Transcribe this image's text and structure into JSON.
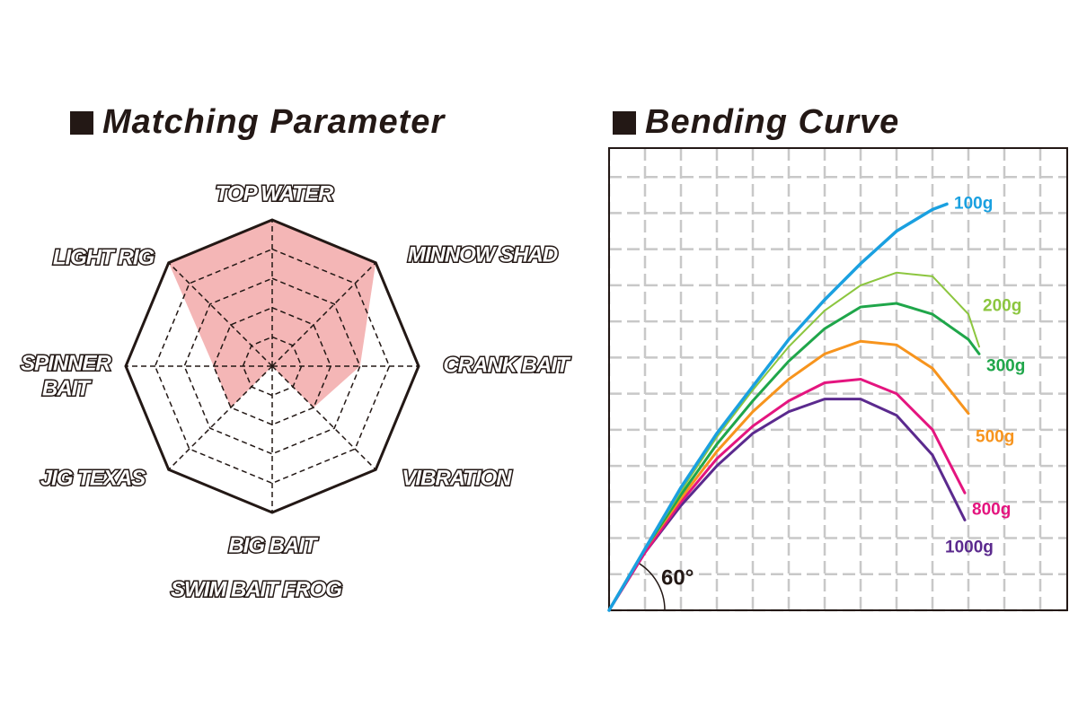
{
  "chart_data": [
    {
      "type": "radar",
      "title": "Matching Parameter",
      "categories": [
        [
          "TOP WATER"
        ],
        [
          "MINNOW SHAD"
        ],
        [
          "CRANK BAIT"
        ],
        [
          "VIBRATION"
        ],
        [
          "BIG BAIT",
          "SWIM BAIT FROG"
        ],
        [
          "JIG TEXAS"
        ],
        [
          "SPINNER",
          "BAIT"
        ],
        [
          "LIGHT RIG"
        ]
      ],
      "values": [
        5,
        5,
        3,
        2,
        0,
        2,
        2,
        5
      ],
      "color": "#f4b6b6",
      "rlim": [
        0,
        5
      ],
      "rticks": [
        1,
        2,
        3,
        4,
        5
      ]
    },
    {
      "type": "line",
      "title": "Bending Curve",
      "annotation": "60°",
      "xlim": [
        0,
        12.75
      ],
      "ylim": [
        0,
        12.8
      ],
      "xticks": [
        0,
        1,
        2,
        3,
        4,
        5,
        6,
        7,
        8,
        9,
        10,
        11,
        12
      ],
      "yticks": [
        0,
        1,
        2,
        3,
        4,
        5,
        6,
        7,
        8,
        9,
        10,
        11,
        12
      ],
      "grid": true,
      "series": [
        {
          "name": "100g",
          "color": "#1aa0e0",
          "x": [
            0,
            1,
            2,
            3,
            4,
            5,
            6,
            7,
            8,
            9,
            9.4
          ],
          "values": [
            0,
            1.7,
            3.4,
            4.9,
            6.2,
            7.5,
            8.6,
            9.6,
            10.5,
            11.1,
            11.25
          ]
        },
        {
          "name": "200g",
          "color": "#8cc63f",
          "x": [
            0,
            1,
            2,
            3,
            4,
            5,
            6,
            7,
            8,
            9,
            10,
            10.3
          ],
          "values": [
            0,
            1.7,
            3.3,
            4.8,
            6.1,
            7.3,
            8.3,
            9.0,
            9.35,
            9.25,
            8.2,
            7.3
          ]
        },
        {
          "name": "300g",
          "color": "#1fa64a",
          "x": [
            0,
            1,
            2,
            3,
            4,
            5,
            6,
            7,
            8,
            9,
            10,
            10.3
          ],
          "values": [
            0,
            1.7,
            3.2,
            4.6,
            5.8,
            6.9,
            7.8,
            8.4,
            8.5,
            8.2,
            7.5,
            7.1
          ]
        },
        {
          "name": "500g",
          "color": "#f7941d",
          "x": [
            0,
            1,
            2,
            3,
            4,
            5,
            6,
            7,
            8,
            9,
            10
          ],
          "values": [
            0,
            1.7,
            3.1,
            4.4,
            5.5,
            6.4,
            7.1,
            7.45,
            7.35,
            6.7,
            5.45
          ]
        },
        {
          "name": "800g",
          "color": "#e4157f",
          "x": [
            0,
            1,
            2,
            3,
            4,
            5,
            6,
            7,
            8,
            9,
            9.9
          ],
          "values": [
            0,
            1.6,
            3.0,
            4.2,
            5.1,
            5.8,
            6.3,
            6.4,
            6.0,
            5.0,
            3.25
          ]
        },
        {
          "name": "1000g",
          "color": "#5b2a8e",
          "x": [
            0,
            1,
            2,
            3,
            4,
            5,
            6,
            7,
            8,
            9,
            9.9
          ],
          "values": [
            0,
            1.6,
            2.9,
            4.0,
            4.9,
            5.5,
            5.85,
            5.85,
            5.4,
            4.3,
            2.5
          ]
        }
      ]
    }
  ]
}
